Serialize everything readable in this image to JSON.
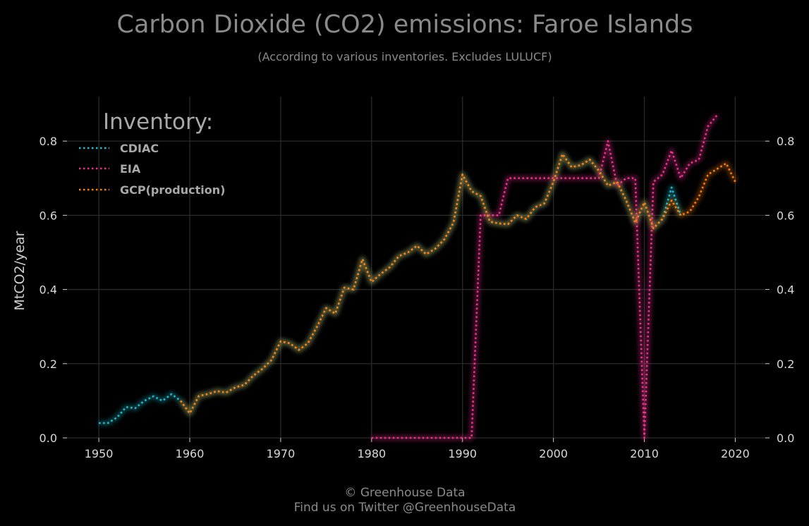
{
  "chart_data": {
    "type": "line",
    "title": "Carbon Dioxide (CO2) emissions: Faroe Islands",
    "subtitle": "(According to various inventories. Excludes LULUCF)",
    "ylabel": "MtCO2/year",
    "xlabel": "",
    "xlim": [
      1946.5,
      2023.3
    ],
    "ylim": [
      0,
      0.92
    ],
    "x_ticks": [
      1950,
      1960,
      1970,
      1980,
      1990,
      2000,
      2010,
      2020
    ],
    "y_ticks": [
      0.0,
      0.2,
      0.4,
      0.6,
      0.8
    ],
    "y_tick_labels": [
      "0.0",
      "0.2",
      "0.4",
      "0.6",
      "0.8"
    ],
    "grid": true,
    "legend": {
      "title": "Inventory:",
      "placement": "top-left"
    },
    "series": [
      {
        "name": "CDIAC",
        "color": "#17c3d3",
        "x": [
          1950,
          1951,
          1952,
          1953,
          1954,
          1955,
          1956,
          1957,
          1958,
          1959,
          1960,
          1961,
          1962,
          1963,
          1964,
          1965,
          1966,
          1967,
          1968,
          1969,
          1970,
          1971,
          1972,
          1973,
          1974,
          1975,
          1976,
          1977,
          1978,
          1979,
          1980,
          1981,
          1982,
          1983,
          1984,
          1985,
          1986,
          1987,
          1988,
          1989,
          1990,
          1991,
          1992,
          1993,
          1994,
          1995,
          1996,
          1997,
          1998,
          1999,
          2000,
          2001,
          2002,
          2003,
          2004,
          2005,
          2006,
          2007,
          2008,
          2009,
          2010,
          2011,
          2012,
          2013,
          2014
        ],
        "y": [
          0.04,
          0.04,
          0.055,
          0.083,
          0.08,
          0.1,
          0.112,
          0.1,
          0.118,
          0.1,
          0.066,
          0.113,
          0.118,
          0.126,
          0.122,
          0.136,
          0.143,
          0.168,
          0.186,
          0.21,
          0.26,
          0.255,
          0.237,
          0.255,
          0.3,
          0.35,
          0.335,
          0.405,
          0.4,
          0.482,
          0.42,
          0.442,
          0.46,
          0.49,
          0.5,
          0.518,
          0.495,
          0.51,
          0.535,
          0.58,
          0.71,
          0.665,
          0.652,
          0.583,
          0.578,
          0.576,
          0.6,
          0.59,
          0.622,
          0.632,
          0.69,
          0.765,
          0.73,
          0.735,
          0.75,
          0.72,
          0.68,
          0.69,
          0.64,
          0.58,
          0.635,
          0.565,
          0.59,
          0.675,
          0.6
        ]
      },
      {
        "name": "EIA",
        "color": "#f0308e",
        "x": [
          1980,
          1981,
          1982,
          1983,
          1984,
          1985,
          1986,
          1987,
          1988,
          1989,
          1990,
          1991,
          1992,
          1993,
          1994,
          1995,
          1996,
          1997,
          1998,
          1999,
          2000,
          2001,
          2002,
          2003,
          2004,
          2005,
          2006,
          2007,
          2008,
          2009,
          2010,
          2011,
          2012,
          2013,
          2014,
          2015,
          2016,
          2017,
          2018
        ],
        "y": [
          0.0,
          0.0,
          0.0,
          0.0,
          0.0,
          0.0,
          0.0,
          0.0,
          0.0,
          0.0,
          0.0,
          0.0,
          0.6,
          0.6,
          0.6,
          0.7,
          0.7,
          0.7,
          0.7,
          0.7,
          0.7,
          0.7,
          0.7,
          0.7,
          0.7,
          0.7,
          0.8,
          0.68,
          0.7,
          0.7,
          0.0,
          0.69,
          0.71,
          0.775,
          0.7,
          0.74,
          0.75,
          0.84,
          0.87
        ]
      },
      {
        "name": "GCP(production)",
        "color": "#ff7f0e",
        "x": [
          1959,
          1960,
          1961,
          1962,
          1963,
          1964,
          1965,
          1966,
          1967,
          1968,
          1969,
          1970,
          1971,
          1972,
          1973,
          1974,
          1975,
          1976,
          1977,
          1978,
          1979,
          1980,
          1981,
          1982,
          1983,
          1984,
          1985,
          1986,
          1987,
          1988,
          1989,
          1990,
          1991,
          1992,
          1993,
          1994,
          1995,
          1996,
          1997,
          1998,
          1999,
          2000,
          2001,
          2002,
          2003,
          2004,
          2005,
          2006,
          2007,
          2008,
          2009,
          2010,
          2011,
          2012,
          2013,
          2014,
          2015,
          2016,
          2017,
          2018,
          2019,
          2020
        ],
        "y": [
          0.1,
          0.066,
          0.113,
          0.118,
          0.126,
          0.122,
          0.136,
          0.143,
          0.168,
          0.186,
          0.21,
          0.26,
          0.255,
          0.237,
          0.255,
          0.3,
          0.35,
          0.335,
          0.405,
          0.4,
          0.482,
          0.42,
          0.442,
          0.46,
          0.49,
          0.5,
          0.518,
          0.495,
          0.51,
          0.535,
          0.58,
          0.71,
          0.665,
          0.652,
          0.583,
          0.578,
          0.576,
          0.6,
          0.59,
          0.622,
          0.632,
          0.69,
          0.765,
          0.73,
          0.735,
          0.75,
          0.72,
          0.68,
          0.69,
          0.64,
          0.58,
          0.635,
          0.565,
          0.59,
          0.64,
          0.6,
          0.61,
          0.65,
          0.71,
          0.725,
          0.74,
          0.69
        ]
      }
    ]
  },
  "footer": {
    "line1": "© Greenhouse Data",
    "line2": "Find us on Twitter @GreenhouseData"
  }
}
